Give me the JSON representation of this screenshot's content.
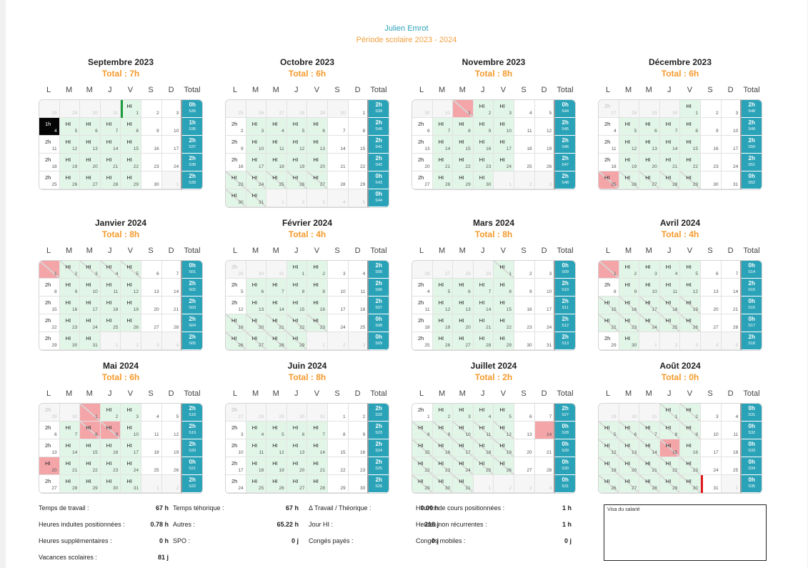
{
  "header": {
    "name": "Julien Emrot",
    "period": "Période scolaire 2023 - 2024"
  },
  "weekdays": [
    "L",
    "M",
    "M",
    "J",
    "V",
    "S",
    "D"
  ],
  "total_label": "Total",
  "hi_label": "HI",
  "months": [
    {
      "title": "Septembre 2023",
      "total": "Total : 7h",
      "startDow": 4,
      "days": 30,
      "prevDays": 31,
      "marks": {
        "1": "HI",
        "4": "1h",
        "5": "HI",
        "6": "HI",
        "7": "HI",
        "8": "HI",
        "11": "2h",
        "12": "HI",
        "13": "HI",
        "14": "HI",
        "15": "HI",
        "18": "2h",
        "19": "HI",
        "20": "HI",
        "21": "HI",
        "22": "HI",
        "25": "2h",
        "26": "HI",
        "27": "HI",
        "28": "HI",
        "29": "HI"
      },
      "black": [
        4
      ],
      "pink": [],
      "slashed": [],
      "greenMark": 1,
      "redMark": 0,
      "totals": [
        {
          "h": "0h",
          "s": "S35"
        },
        {
          "h": "1h",
          "s": "S36"
        },
        {
          "h": "2h",
          "s": "S37"
        },
        {
          "h": "2h",
          "s": "S38"
        },
        {
          "h": "2h",
          "s": "S39"
        }
      ]
    },
    {
      "title": "Octobre 2023",
      "total": "Total : 6h",
      "startDow": 6,
      "days": 31,
      "prevDays": 30,
      "marks": {
        "2": "2h",
        "3": "HI",
        "4": "HI",
        "5": "HI",
        "6": "HI",
        "9": "2h",
        "10": "HI",
        "11": "HI",
        "12": "HI",
        "13": "HI",
        "16": "2h",
        "17": "HI",
        "18": "HI",
        "19": "HI",
        "20": "HI",
        "23": "HI",
        "24": "HI",
        "25": "HI",
        "26": "HI",
        "27": "HI",
        "30": "HI",
        "31": "HI"
      },
      "black": [],
      "pink": [],
      "slashed": [
        23,
        24,
        25,
        26,
        27,
        30,
        31
      ],
      "greenMark": 0,
      "redMark": 0,
      "totals": [
        {
          "h": "2h",
          "s": "S39"
        },
        {
          "h": "2h",
          "s": "S40"
        },
        {
          "h": "2h",
          "s": "S41"
        },
        {
          "h": "2h",
          "s": "S42"
        },
        {
          "h": "0h",
          "s": "S43"
        },
        {
          "h": "0h",
          "s": "S44"
        }
      ]
    },
    {
      "title": "Novembre 2023",
      "total": "Total : 8h",
      "startDow": 2,
      "days": 30,
      "prevDays": 31,
      "marks": {
        "2": "HI",
        "3": "HI",
        "6": "2h",
        "7": "HI",
        "8": "HI",
        "9": "HI",
        "10": "HI",
        "13": "2h",
        "14": "HI",
        "15": "HI",
        "16": "HI",
        "17": "HI",
        "20": "2h",
        "21": "HI",
        "22": "HI",
        "23": "HI",
        "24": "HI",
        "27": "2h",
        "28": "HI",
        "29": "HI",
        "30": "HI"
      },
      "black": [],
      "pink": [
        1
      ],
      "slashed": [
        1
      ],
      "greenMark": 0,
      "redMark": 0,
      "totals": [
        {
          "h": "0h",
          "s": "S44"
        },
        {
          "h": "2h",
          "s": "S45"
        },
        {
          "h": "2h",
          "s": "S46"
        },
        {
          "h": "2h",
          "s": "S47"
        },
        {
          "h": "2h",
          "s": "S48"
        }
      ]
    },
    {
      "title": "Décembre 2023",
      "total": "Total : 6h",
      "startDow": 4,
      "days": 31,
      "prevDays": 30,
      "marks": {
        "1": "HI",
        "4": "2h",
        "5": "HI",
        "6": "HI",
        "7": "HI",
        "8": "HI",
        "11": "2h",
        "12": "HI",
        "13": "HI",
        "14": "HI",
        "15": "HI",
        "18": "2h",
        "19": "HI",
        "20": "HI",
        "21": "HI",
        "22": "HI",
        "25": "HI",
        "26": "HI",
        "27": "HI",
        "28": "HI",
        "29": "HI"
      },
      "black": [],
      "pink": [
        25
      ],
      "slashed": [
        25,
        26,
        27,
        28,
        29
      ],
      "greenMark": 0,
      "redMark": 0,
      "ghost": {
        "0": "2h"
      },
      "totals": [
        {
          "h": "2h",
          "s": "S48"
        },
        {
          "h": "2h",
          "s": "S49"
        },
        {
          "h": "2h",
          "s": "S50"
        },
        {
          "h": "2h",
          "s": "S51"
        },
        {
          "h": "0h",
          "s": "S52"
        }
      ]
    },
    {
      "title": "Janvier 2024",
      "total": "Total : 8h",
      "startDow": 0,
      "days": 31,
      "prevDays": 31,
      "marks": {
        "2": "HI",
        "3": "HI",
        "4": "HI",
        "5": "HI",
        "8": "2h",
        "9": "HI",
        "10": "HI",
        "11": "HI",
        "12": "HI",
        "15": "2h",
        "16": "HI",
        "17": "HI",
        "18": "HI",
        "19": "HI",
        "22": "2h",
        "23": "HI",
        "24": "HI",
        "25": "HI",
        "26": "HI",
        "29": "2h",
        "30": "HI",
        "31": "HI"
      },
      "black": [],
      "pink": [
        1
      ],
      "slashed": [
        1,
        2,
        3,
        4,
        5
      ],
      "greenMark": 0,
      "redMark": 0,
      "totals": [
        {
          "h": "0h",
          "s": "S01"
        },
        {
          "h": "2h",
          "s": "S02"
        },
        {
          "h": "2h",
          "s": "S03"
        },
        {
          "h": "2h",
          "s": "S04"
        },
        {
          "h": "2h",
          "s": "S05"
        }
      ]
    },
    {
      "title": "Février 2024",
      "total": "Total : 4h",
      "startDow": 3,
      "days": 29,
      "prevDays": 31,
      "marks": {
        "1": "HI",
        "2": "HI",
        "5": "2h",
        "6": "HI",
        "7": "HI",
        "8": "HI",
        "9": "HI",
        "12": "2h",
        "13": "HI",
        "14": "HI",
        "15": "HI",
        "16": "HI",
        "19": "HI",
        "20": "HI",
        "21": "HI",
        "22": "HI",
        "23": "HI",
        "26": "HI",
        "27": "HI",
        "28": "HI",
        "29": "HI"
      },
      "black": [],
      "pink": [],
      "slashed": [
        19,
        20,
        21,
        22,
        23,
        26,
        27,
        28,
        29
      ],
      "greenMark": 0,
      "redMark": 0,
      "ghost": {
        "0": "2h"
      },
      "totals": [
        {
          "h": "2h",
          "s": "S05"
        },
        {
          "h": "2h",
          "s": "S06"
        },
        {
          "h": "2h",
          "s": "S07"
        },
        {
          "h": "0h",
          "s": "S08"
        },
        {
          "h": "0h",
          "s": "S09"
        }
      ]
    },
    {
      "title": "Mars 2024",
      "total": "Total : 8h",
      "startDow": 4,
      "days": 31,
      "prevDays": 29,
      "marks": {
        "1": "HI",
        "4": "2h",
        "5": "HI",
        "6": "HI",
        "7": "HI",
        "8": "HI",
        "11": "2h",
        "12": "HI",
        "13": "HI",
        "14": "HI",
        "15": "HI",
        "18": "2h",
        "19": "HI",
        "20": "HI",
        "21": "HI",
        "22": "HI",
        "25": "2h",
        "26": "HI",
        "27": "HI",
        "28": "HI",
        "29": "HI"
      },
      "black": [],
      "pink": [],
      "slashed": [
        1
      ],
      "greenMark": 0,
      "redMark": 0,
      "totals": [
        {
          "h": "0h",
          "s": "S09"
        },
        {
          "h": "2h",
          "s": "S10"
        },
        {
          "h": "2h",
          "s": "S11"
        },
        {
          "h": "2h",
          "s": "S12"
        },
        {
          "h": "2h",
          "s": "S13"
        }
      ]
    },
    {
      "title": "Avril 2024",
      "total": "Total : 4h",
      "startDow": 0,
      "days": 30,
      "prevDays": 31,
      "marks": {
        "2": "HI",
        "3": "HI",
        "4": "HI",
        "5": "HI",
        "8": "2h",
        "9": "HI",
        "10": "HI",
        "11": "HI",
        "12": "HI",
        "15": "HI",
        "16": "HI",
        "17": "HI",
        "18": "HI",
        "19": "HI",
        "22": "HI",
        "23": "HI",
        "24": "HI",
        "25": "HI",
        "26": "HI",
        "29": "2h",
        "30": "HI"
      },
      "black": [],
      "pink": [
        1
      ],
      "slashed": [
        1,
        15,
        16,
        17,
        18,
        19,
        22,
        23,
        24,
        25,
        26
      ],
      "greenMark": 0,
      "redMark": 0,
      "totals": [
        {
          "h": "0h",
          "s": "S14"
        },
        {
          "h": "2h",
          "s": "S15"
        },
        {
          "h": "0h",
          "s": "S16"
        },
        {
          "h": "0h",
          "s": "S17"
        },
        {
          "h": "2h",
          "s": "S18"
        }
      ]
    },
    {
      "title": "Mai 2024",
      "total": "Total : 6h",
      "startDow": 2,
      "days": 31,
      "prevDays": 30,
      "marks": {
        "2": "HI",
        "3": "HI",
        "6": "2h",
        "7": "HI",
        "8": "HI",
        "9": "HI",
        "10": "HI",
        "13": "2h",
        "14": "HI",
        "15": "HI",
        "16": "HI",
        "17": "HI",
        "20": "HI",
        "21": "HI",
        "22": "HI",
        "23": "HI",
        "24": "HI",
        "27": "2h",
        "28": "HI",
        "29": "HI",
        "30": "HI",
        "31": "HI"
      },
      "black": [],
      "pink": [
        1,
        8,
        9,
        20
      ],
      "slashed": [
        1,
        8,
        9
      ],
      "greenMark": 0,
      "redMark": 0,
      "ghost": {
        "0": "2h"
      },
      "totals": [
        {
          "h": "2h",
          "s": "S18"
        },
        {
          "h": "2h",
          "s": "S19"
        },
        {
          "h": "2h",
          "s": "S20"
        },
        {
          "h": "0h",
          "s": "S21"
        },
        {
          "h": "2h",
          "s": "S22"
        }
      ]
    },
    {
      "title": "Juin 2024",
      "total": "Total : 8h",
      "startDow": 5,
      "days": 30,
      "prevDays": 31,
      "marks": {
        "3": "2h",
        "4": "HI",
        "5": "HI",
        "6": "HI",
        "7": "HI",
        "10": "2h",
        "11": "HI",
        "12": "HI",
        "13": "HI",
        "14": "HI",
        "17": "2h",
        "18": "HI",
        "19": "HI",
        "20": "HI",
        "21": "HI",
        "24": "2h",
        "25": "HI",
        "26": "HI",
        "27": "HI",
        "28": "HI"
      },
      "black": [],
      "pink": [],
      "slashed": [],
      "greenMark": 0,
      "redMark": 0,
      "ghost": {
        "0": "2h"
      },
      "totals": [
        {
          "h": "2h",
          "s": "S22"
        },
        {
          "h": "2h",
          "s": "S23"
        },
        {
          "h": "2h",
          "s": "S24"
        },
        {
          "h": "2h",
          "s": "S25"
        },
        {
          "h": "2h",
          "s": "S26"
        }
      ]
    },
    {
      "title": "Juillet 2024",
      "total": "Total : 2h",
      "startDow": 0,
      "days": 31,
      "prevDays": 30,
      "marks": {
        "1": "2h",
        "2": "HI",
        "3": "HI",
        "4": "HI",
        "5": "HI",
        "8": "HI",
        "9": "HI",
        "10": "HI",
        "11": "HI",
        "12": "HI",
        "15": "HI",
        "16": "HI",
        "17": "HI",
        "18": "HI",
        "19": "HI",
        "22": "HI",
        "23": "HI",
        "24": "HI",
        "25": "HI",
        "26": "HI",
        "29": "HI",
        "30": "HI",
        "31": "HI"
      },
      "black": [],
      "pink": [
        14
      ],
      "slashed": [
        8,
        9,
        10,
        11,
        12,
        15,
        16,
        17,
        18,
        19,
        22,
        23,
        24,
        25,
        26,
        29,
        30,
        31
      ],
      "greenMark": 0,
      "redMark": 0,
      "totals": [
        {
          "h": "2h",
          "s": "S27"
        },
        {
          "h": "0h",
          "s": "S28"
        },
        {
          "h": "0h",
          "s": "S29"
        },
        {
          "h": "0h",
          "s": "S30"
        },
        {
          "h": "0h",
          "s": "S31"
        }
      ]
    },
    {
      "title": "Août 2024",
      "total": "Total : 0h",
      "startDow": 3,
      "days": 31,
      "prevDays": 31,
      "marks": {
        "1": "HI",
        "2": "HI",
        "5": "HI",
        "6": "HI",
        "7": "HI",
        "8": "HI",
        "9": "HI",
        "12": "HI",
        "13": "HI",
        "14": "HI",
        "15": "HI",
        "16": "HI",
        "19": "HI",
        "20": "HI",
        "21": "HI",
        "22": "HI",
        "23": "HI",
        "26": "HI",
        "27": "HI",
        "28": "HI",
        "29": "HI",
        "30": "HI"
      },
      "black": [],
      "pink": [
        15
      ],
      "slashed": [
        1,
        2,
        5,
        6,
        7,
        8,
        9,
        12,
        13,
        14,
        15,
        19,
        20,
        21,
        22,
        23,
        26,
        27,
        28,
        29,
        30
      ],
      "greenMark": 0,
      "redMark": 31,
      "totals": [
        {
          "h": "0h",
          "s": "S31"
        },
        {
          "h": "0h",
          "s": "S32"
        },
        {
          "h": "0h",
          "s": "S33"
        },
        {
          "h": "0h",
          "s": "S34"
        },
        {
          "h": "0h",
          "s": "S35"
        }
      ]
    }
  ],
  "summary": [
    {
      "label": "Temps de travail :",
      "value": "67 h"
    },
    {
      "label": "Temps téhorique :",
      "value": "67 h"
    },
    {
      "label": "Δ Travail / Théorique :",
      "value": "0.00 h"
    },
    {
      "label": "Heures de cours positionnées :",
      "value": "1 h"
    },
    {
      "label": "Heures induites positionnées :",
      "value": "0.78 h"
    },
    {
      "label": "Autres :",
      "value": "65.22 h"
    },
    {
      "label": "Jour HI :",
      "value": "218 j"
    },
    {
      "label": "Heures non récurrentes :",
      "value": "1 h"
    },
    {
      "label": "Heures supplémentaires :",
      "value": "0 h"
    },
    {
      "label": "SPO :",
      "value": "0 j"
    },
    {
      "label": "Congés payés :",
      "value": "0 j"
    },
    {
      "label": "Congés mobiles :",
      "value": "0 j"
    },
    {
      "label": "Vacances scolaires :",
      "value": "81 j"
    }
  ],
  "visa": {
    "label": "Visa du salarié"
  },
  "colors": {
    "accent": "#2aa3b8",
    "orange": "#f59a2c",
    "hi_bg": "#e2f6e7",
    "pink": "#f4a5a8",
    "green_mark": "#1a9c3c",
    "red_mark": "#e0191f"
  }
}
